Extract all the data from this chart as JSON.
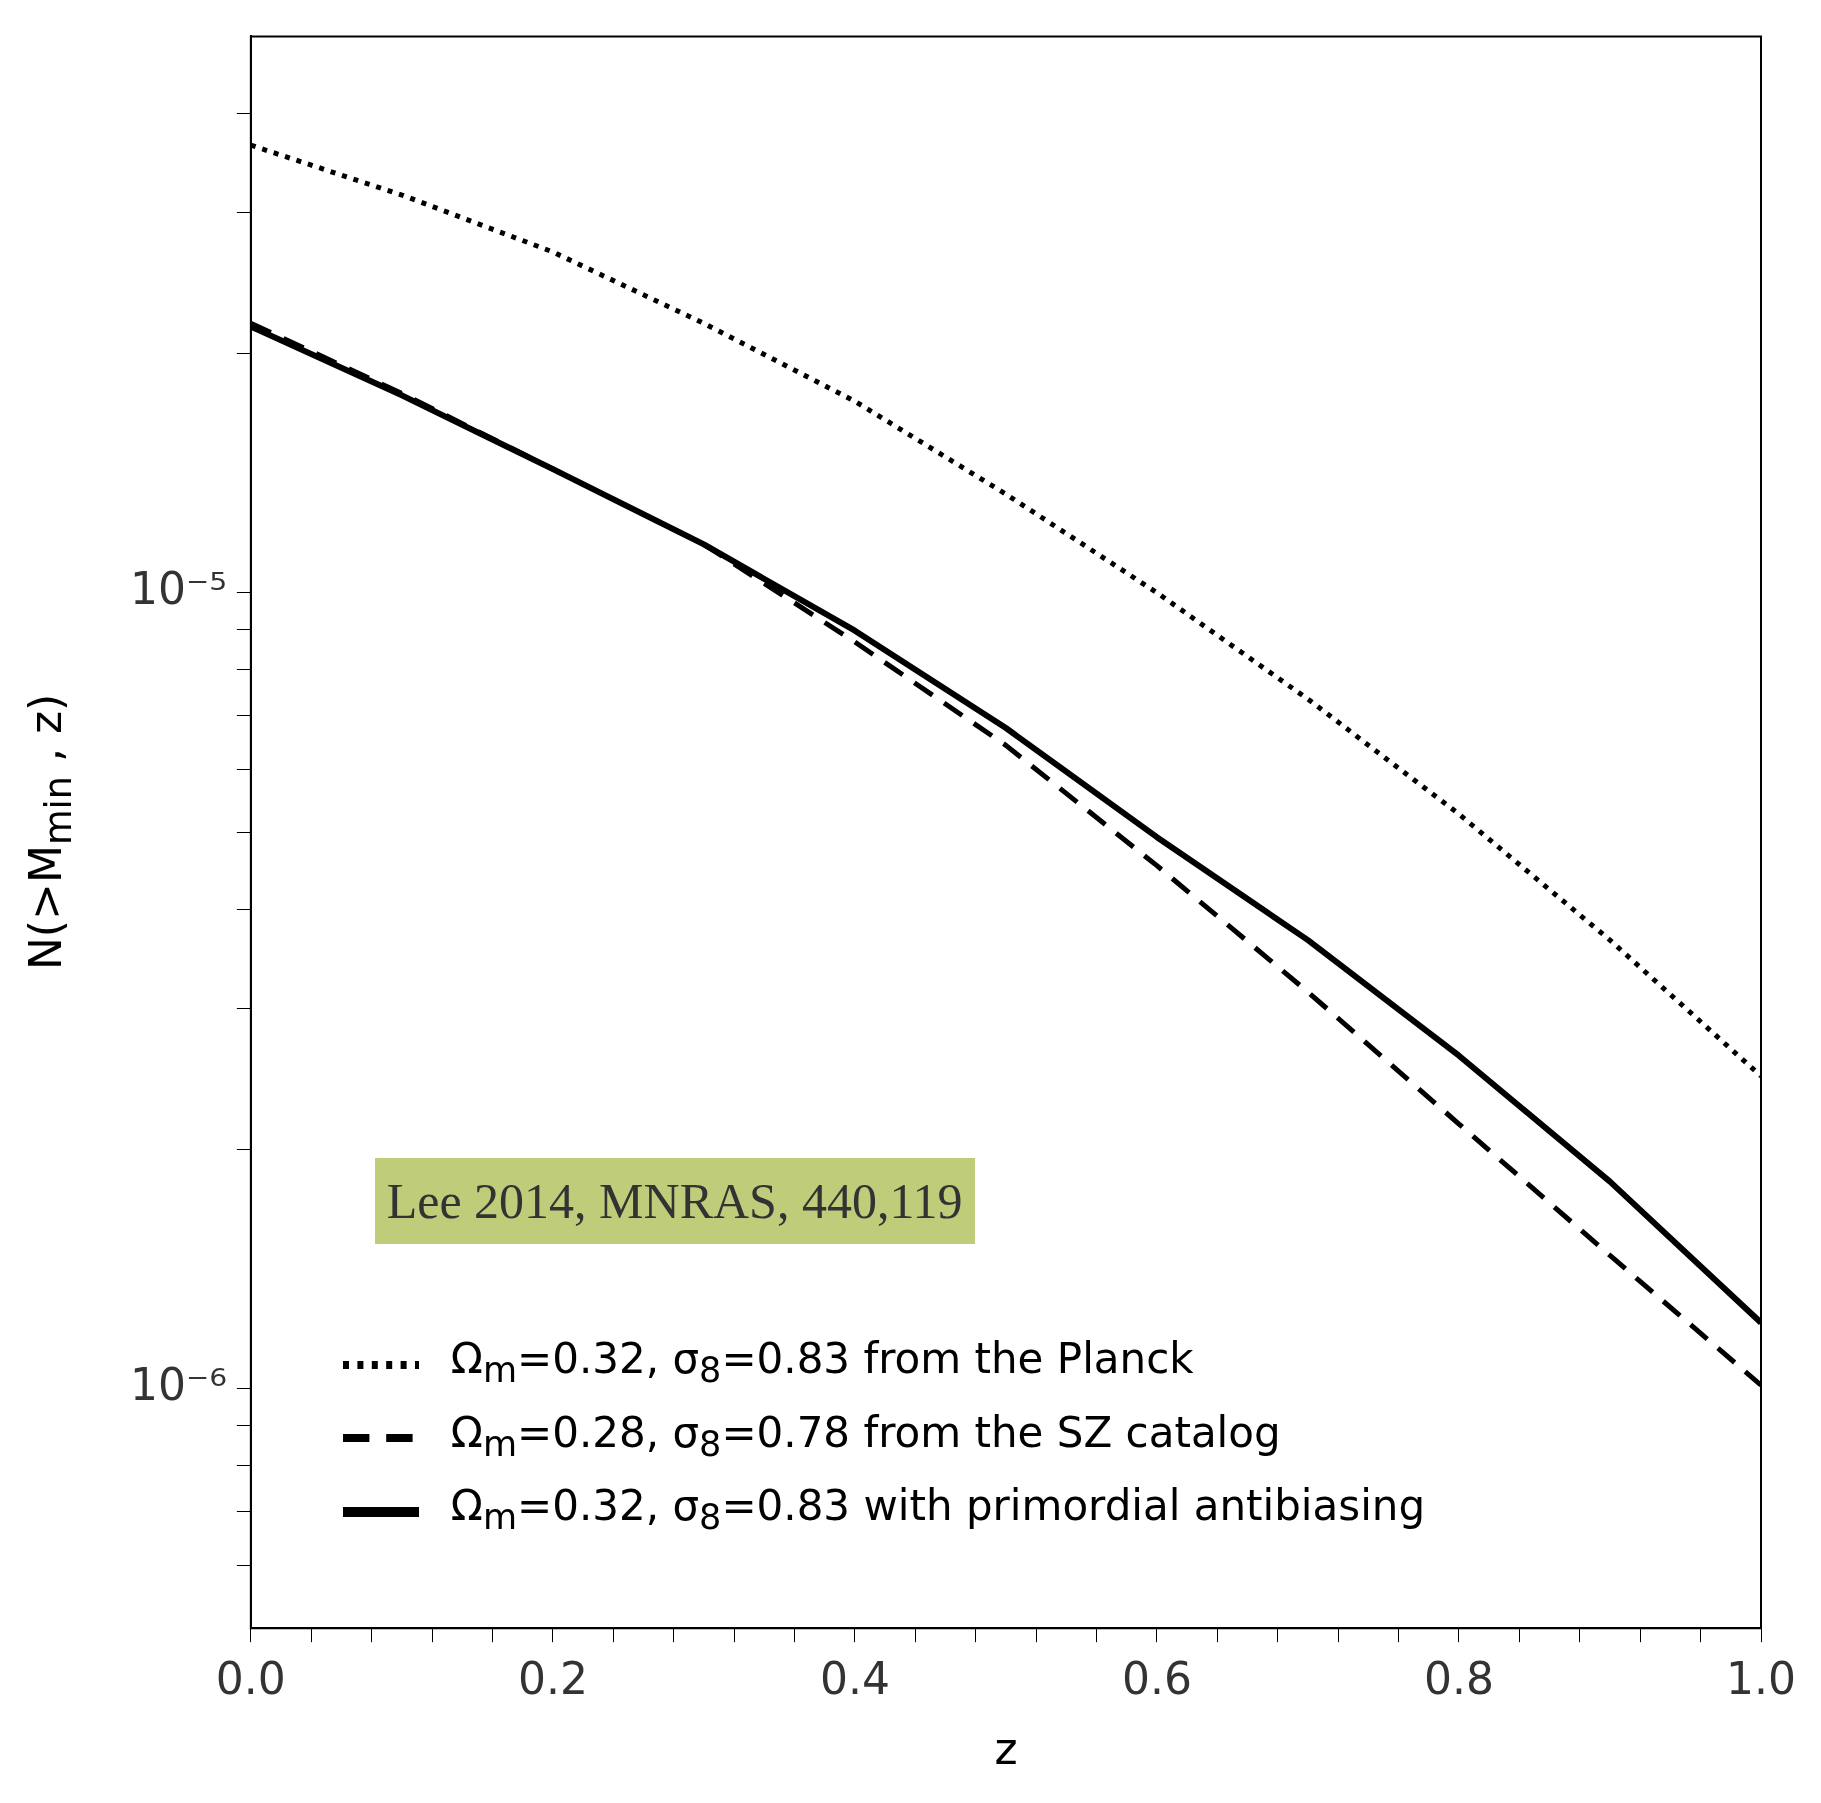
{
  "chart_data": {
    "type": "line",
    "xlabel": "z",
    "ylabel": "N(>M$_{min}$ , z)",
    "log": "y",
    "marker": "none",
    "legend": "bottom left",
    "grid": false,
    "x": [
      0,
      0.1,
      0.2,
      0.3,
      0.4,
      0.5,
      0.6,
      0.7,
      0.8,
      0.9,
      1.0
    ],
    "xlim": [
      0,
      1
    ],
    "xticks": [
      {
        "value": 0,
        "label": "0.0"
      },
      {
        "value": 0.04,
        "label": null
      },
      {
        "value": 0.08,
        "label": null
      },
      {
        "value": 0.12,
        "label": null
      },
      {
        "value": 0.16,
        "label": null
      },
      {
        "value": 0.2,
        "label": "0.2"
      },
      {
        "value": 0.24,
        "label": null
      },
      {
        "value": 0.28,
        "label": null
      },
      {
        "value": 0.32,
        "label": null
      },
      {
        "value": 0.36,
        "label": null
      },
      {
        "value": 0.4,
        "label": "0.4"
      },
      {
        "value": 0.44,
        "label": null
      },
      {
        "value": 0.48,
        "label": null
      },
      {
        "value": 0.52,
        "label": null
      },
      {
        "value": 0.56,
        "label": null
      },
      {
        "value": 0.6,
        "label": "0.6"
      },
      {
        "value": 0.64,
        "label": null
      },
      {
        "value": 0.68,
        "label": null
      },
      {
        "value": 0.72,
        "label": null
      },
      {
        "value": 0.76,
        "label": null
      },
      {
        "value": 0.8,
        "label": "0.8"
      },
      {
        "value": 0.84,
        "label": null
      },
      {
        "value": 0.88,
        "label": null
      },
      {
        "value": 0.92,
        "label": null
      },
      {
        "value": 0.96,
        "label": null
      },
      {
        "value": 1.0,
        "label": "1.0"
      }
    ],
    "ylim": [
      5e-07,
      5e-05
    ],
    "yticks": [
      {
        "value": 6e-07,
        "label": null
      },
      {
        "value": 7e-07,
        "label": null
      },
      {
        "value": 8e-07,
        "label": null
      },
      {
        "value": 9e-07,
        "label": null
      },
      {
        "value": 1e-06,
        "label": "10⁻⁶"
      },
      {
        "value": 2e-06,
        "label": null
      },
      {
        "value": 3e-06,
        "label": null
      },
      {
        "value": 4e-06,
        "label": null
      },
      {
        "value": 5e-06,
        "label": null
      },
      {
        "value": 6e-06,
        "label": null
      },
      {
        "value": 7e-06,
        "label": null
      },
      {
        "value": 8e-06,
        "label": null
      },
      {
        "value": 9e-06,
        "label": null
      },
      {
        "value": 1e-05,
        "label": "10⁻⁵"
      },
      {
        "value": 2e-05,
        "label": null
      },
      {
        "value": 3e-05,
        "label": null
      },
      {
        "value": 4e-05,
        "label": null
      }
    ],
    "series": [
      {
        "name": "Ω$_{m}$=0.32, σ$_{8}$=0.83 from the Planck",
        "color": "#000000",
        "line_style": "dotted",
        "values": [
          3.65e-05,
          3.16e-05,
          2.68e-05,
          2.18e-05,
          1.74e-05,
          1.33e-05,
          1e-05,
          7.35e-06,
          5.27e-06,
          3.66e-06,
          2.47e-06
        ]
      },
      {
        "name": "Ω$_{m}$=0.28, σ$_{8}$=0.78 from the SZ catalog",
        "color": "#000000",
        "line_style": "dashed",
        "values": [
          2.18e-05,
          1.78e-05,
          1.43e-05,
          1.15e-05,
          8.67e-06,
          6.43e-06,
          4.54e-06,
          3.15e-06,
          2.15e-06,
          1.47e-06,
          1.01e-06
        ]
      },
      {
        "name": "Ω$_{m}$=0.32, σ$_{8}$=0.83 with primordial antibiasing",
        "color": "#000000",
        "line_style": "solid",
        "values": [
          2.16e-05,
          1.77e-05,
          1.43e-05,
          1.15e-05,
          8.96e-06,
          6.76e-06,
          4.93e-06,
          3.66e-06,
          2.62e-06,
          1.82e-06,
          1.21e-06
        ]
      }
    ],
    "annotations": [
      "Lee 2014, MNRAS, 440,119"
    ]
  }
}
